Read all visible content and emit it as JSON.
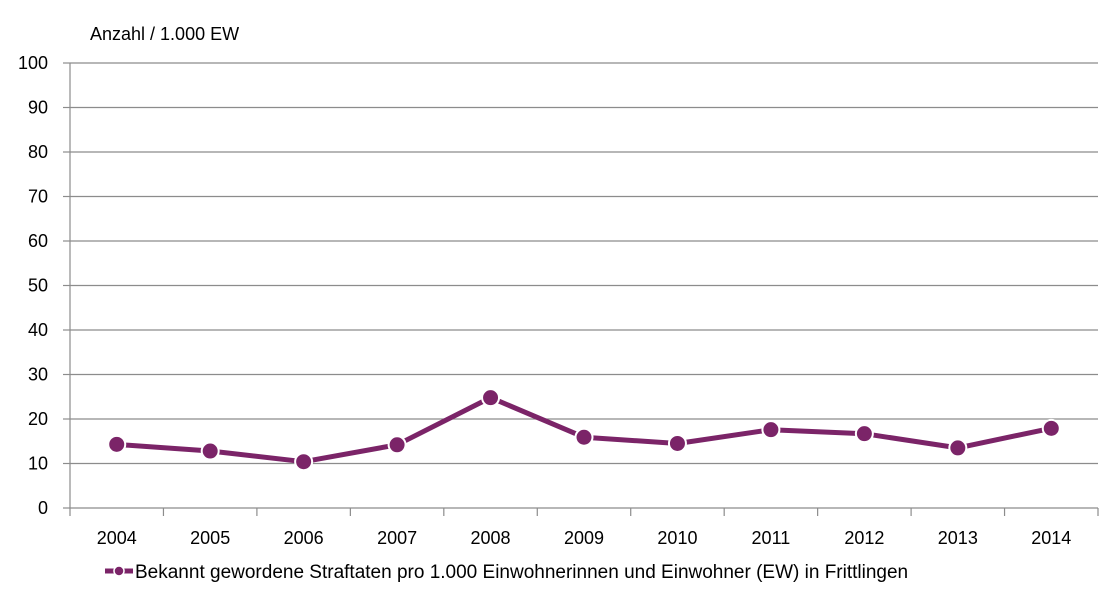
{
  "chart_data": {
    "type": "line",
    "ylabel": "Anzahl / 1.000 EW",
    "xlabel": "",
    "categories": [
      "2004",
      "2005",
      "2006",
      "2007",
      "2008",
      "2009",
      "2010",
      "2011",
      "2012",
      "2013",
      "2014"
    ],
    "series": [
      {
        "name": "Bekannt gewordene Straftaten pro 1.000 Einwohnerinnen und Einwohner (EW) in Frittlingen",
        "values": [
          14.3,
          12.8,
          10.4,
          14.2,
          24.8,
          15.9,
          14.5,
          17.6,
          16.7,
          13.5,
          17.9
        ],
        "color": "#7b2468"
      }
    ],
    "ylim": [
      0,
      100
    ],
    "yticks": [
      0,
      10,
      20,
      30,
      40,
      50,
      60,
      70,
      80,
      90,
      100
    ],
    "grid": true,
    "legend": "bottom"
  }
}
